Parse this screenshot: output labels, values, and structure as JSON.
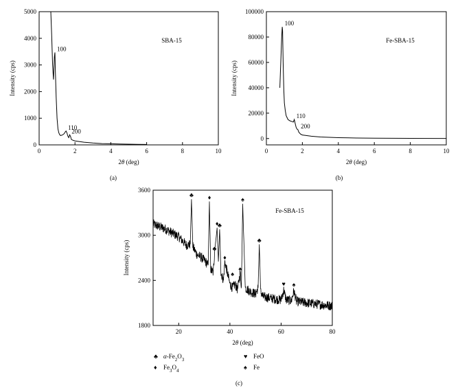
{
  "chart_data": [
    {
      "panel": "(a)",
      "type": "line",
      "sample_label": "SBA-15",
      "xlabel": "2θ (deg)",
      "ylabel": "Intensity (cps)",
      "xlim": [
        0,
        10
      ],
      "ylim": [
        0,
        5000
      ],
      "xticks": [
        "0",
        "2",
        "4",
        "6",
        "8",
        "10"
      ],
      "yticks": [
        "0",
        "1000",
        "2000",
        "3000",
        "4000",
        "5000"
      ],
      "series": [
        {
          "x": [
            0.65,
            0.7,
            0.75,
            0.8,
            0.85,
            0.88,
            0.9,
            0.95,
            1.0,
            1.05,
            1.1,
            1.15,
            1.2,
            1.3,
            1.4,
            1.45,
            1.5,
            1.55,
            1.6,
            1.65,
            1.7,
            1.75,
            1.8,
            1.9,
            2.0,
            2.2,
            2.5,
            3.0,
            3.5,
            4.0,
            4.5,
            5.0,
            5.5,
            6.0
          ],
          "y": [
            5000,
            4100,
            3000,
            2450,
            3300,
            3470,
            2900,
            1800,
            1000,
            600,
            450,
            380,
            350,
            370,
            420,
            480,
            520,
            450,
            330,
            270,
            380,
            320,
            200,
            170,
            150,
            130,
            100,
            70,
            50,
            40,
            30,
            25,
            20,
            15
          ]
        }
      ],
      "peak_labels": [
        {
          "text": "100",
          "x": 0.88,
          "y": 3470
        },
        {
          "text": "110",
          "x": 1.5,
          "y": 520
        },
        {
          "text": "200",
          "x": 1.7,
          "y": 380
        }
      ]
    },
    {
      "panel": "(b)",
      "type": "line",
      "sample_label": "Fe-SBA-15",
      "xlabel": "2θ (deg)",
      "ylabel": "Intensity (cps)",
      "xlim": [
        0,
        10
      ],
      "ylim": [
        -5000,
        100000
      ],
      "xticks": [
        "0",
        "2",
        "4",
        "6",
        "8",
        "10"
      ],
      "yticks": [
        "0",
        "20000",
        "40000",
        "60000",
        "80000",
        "100000"
      ],
      "series": [
        {
          "x": [
            0.75,
            0.78,
            0.82,
            0.85,
            0.88,
            0.9,
            0.93,
            0.97,
            1.0,
            1.05,
            1.1,
            1.2,
            1.3,
            1.4,
            1.5,
            1.55,
            1.6,
            1.65,
            1.7,
            1.75,
            1.8,
            1.9,
            2.0,
            2.5,
            3.0,
            4.0,
            5.0,
            6.0,
            8.0,
            10.0
          ],
          "y": [
            40000,
            52000,
            68000,
            80000,
            88000,
            85000,
            60000,
            38000,
            28000,
            22000,
            18000,
            15000,
            14000,
            13500,
            13000,
            15000,
            12000,
            9000,
            7500,
            7000,
            5000,
            3500,
            2800,
            1800,
            1200,
            700,
            400,
            250,
            150,
            100
          ]
        }
      ],
      "peak_labels": [
        {
          "text": "100",
          "x": 0.9,
          "y": 88000
        },
        {
          "text": "110",
          "x": 1.55,
          "y": 15000
        },
        {
          "text": "200",
          "x": 1.8,
          "y": 7000
        }
      ]
    },
    {
      "panel": "(c)",
      "type": "line",
      "sample_label": "Fe-SBA-15",
      "xlabel": "2θ (deg)",
      "ylabel": "Intensity (cps)",
      "xlim": [
        10,
        80
      ],
      "ylim": [
        1800,
        3600
      ],
      "xticks": [
        "20",
        "40",
        "60",
        "80"
      ],
      "yticks": [
        "1800",
        "2400",
        "3000",
        "3600"
      ],
      "series": [
        {
          "x": [
            10,
            15,
            20,
            23,
            24.5,
            25,
            25.5,
            27,
            29,
            30.5,
            31.5,
            32,
            32.5,
            33.5,
            34,
            35,
            35.5,
            36,
            36.5,
            37.5,
            38,
            40,
            41,
            42,
            43,
            44,
            44.5,
            45,
            46,
            48,
            50,
            51,
            51.5,
            52,
            53,
            55,
            58,
            60,
            61,
            62,
            64,
            65,
            66,
            70,
            75,
            80
          ],
          "y": [
            3150,
            3080,
            2980,
            2870,
            2880,
            3480,
            2850,
            2750,
            2700,
            2650,
            2600,
            3450,
            2550,
            2500,
            2770,
            3100,
            2650,
            3080,
            2500,
            2400,
            2650,
            2350,
            2300,
            2350,
            2280,
            2500,
            2320,
            3420,
            2300,
            2250,
            2220,
            2300,
            2880,
            2250,
            2180,
            2170,
            2150,
            2140,
            2270,
            2140,
            2130,
            2260,
            2120,
            2100,
            2080,
            2060
          ]
        }
      ],
      "markers": [
        {
          "symbol": "♣",
          "x": 25,
          "y": 3480
        },
        {
          "symbol": "♦",
          "x": 32,
          "y": 3450
        },
        {
          "symbol": "♦",
          "x": 35,
          "y": 3100
        },
        {
          "symbol": "♣",
          "x": 36,
          "y": 3080
        },
        {
          "symbol": "♣",
          "x": 34,
          "y": 2770
        },
        {
          "symbol": "♦",
          "x": 38,
          "y": 2650
        },
        {
          "symbol": "♠",
          "x": 41,
          "y": 2430
        },
        {
          "symbol": "♠",
          "x": 44,
          "y": 2500
        },
        {
          "symbol": "♠",
          "x": 45,
          "y": 3420
        },
        {
          "symbol": "♣",
          "x": 51.5,
          "y": 2880
        },
        {
          "symbol": "♥",
          "x": 61,
          "y": 2300
        },
        {
          "symbol": "♠",
          "x": 65,
          "y": 2290
        }
      ],
      "legend": [
        {
          "symbol": "♣",
          "label": "α-Fe2O3"
        },
        {
          "symbol": "♦",
          "label": "Fe3O4"
        },
        {
          "symbol": "♥",
          "label": "FeO"
        },
        {
          "symbol": "♠",
          "label": "Fe"
        }
      ]
    }
  ]
}
